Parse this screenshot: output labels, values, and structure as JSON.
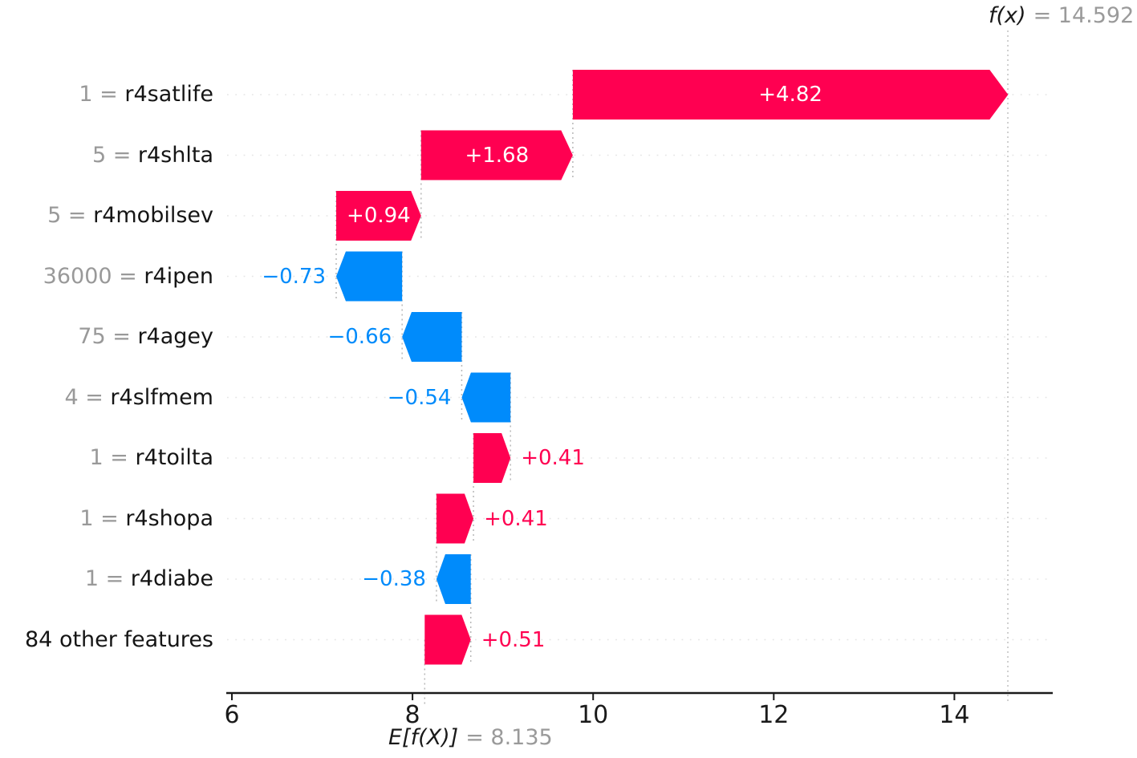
{
  "figure": {
    "fx_annotation": {
      "math": "f(x)",
      "eq": "= 14.592"
    },
    "ef_annotation": {
      "math": "E[f(X)]",
      "eq": "= 8.135"
    }
  },
  "chart_data": {
    "type": "bar",
    "variant": "shap-waterfall",
    "orientation": "horizontal",
    "base_value": 8.135,
    "prediction": 14.592,
    "x_ticks": [
      "6",
      "8",
      "10",
      "12",
      "14"
    ],
    "xlim": [
      5.94,
      15.09
    ],
    "grid": "dotted-row-lines",
    "colors": {
      "positive": "#ff0051",
      "negative": "#008bfb",
      "inside_label": "#ffffff",
      "muted_text": "#999999",
      "axis": "#1a1a1a",
      "row_gridline": "#e5e5e5",
      "connector": "#b8b8b8",
      "reference_line": "#c0c0c0"
    },
    "rows": [
      {
        "feature": "r4satlife",
        "feature_value": "1",
        "shap": 4.82,
        "label": "+4.82"
      },
      {
        "feature": "r4shlta",
        "feature_value": "5",
        "shap": 1.68,
        "label": "+1.68"
      },
      {
        "feature": "r4mobilsev",
        "feature_value": "5",
        "shap": 0.94,
        "label": "+0.94"
      },
      {
        "feature": "r4ipen",
        "feature_value": "36000",
        "shap": -0.73,
        "label": "−0.73"
      },
      {
        "feature": "r4agey",
        "feature_value": "75",
        "shap": -0.66,
        "label": "−0.66"
      },
      {
        "feature": "r4slfmem",
        "feature_value": "4",
        "shap": -0.54,
        "label": "−0.54"
      },
      {
        "feature": "r4toilta",
        "feature_value": "1",
        "shap": 0.41,
        "label": "+0.41"
      },
      {
        "feature": "r4shopa",
        "feature_value": "1",
        "shap": 0.41,
        "label": "+0.41"
      },
      {
        "feature": "r4diabe",
        "feature_value": "1",
        "shap": -0.38,
        "label": "−0.38"
      },
      {
        "feature": "84 other features",
        "feature_value": null,
        "shap": 0.51,
        "label": "+0.51"
      }
    ]
  }
}
